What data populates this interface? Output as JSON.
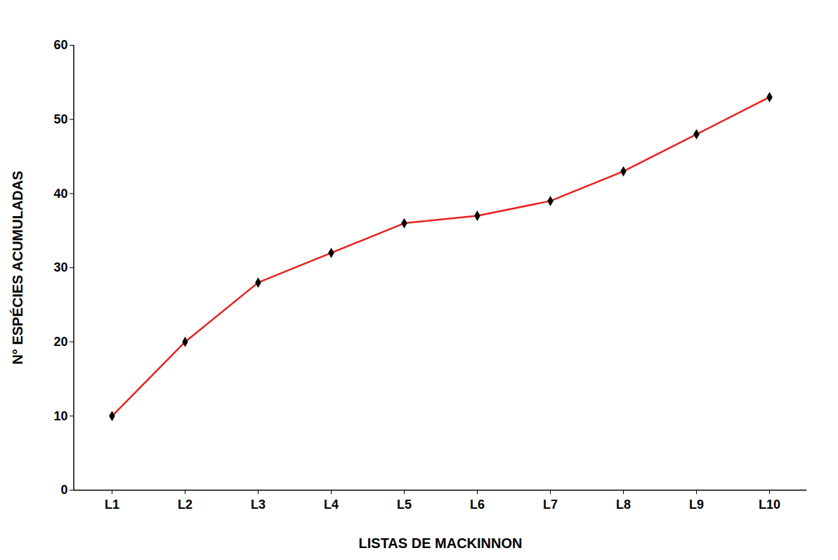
{
  "chart_data": {
    "type": "line",
    "x_label": "LISTAS DE MACKINNON",
    "y_label": "N° ESPÉCIES ACUMULADAS",
    "categories": [
      "L1",
      "L2",
      "L3",
      "L4",
      "L5",
      "L6",
      "L7",
      "L8",
      "L9",
      "L10"
    ],
    "values": [
      10,
      20,
      28,
      32,
      36,
      37,
      39,
      43,
      48,
      53
    ],
    "color": "#e8211d",
    "marker": "diamond",
    "ylim": [
      0,
      60
    ],
    "yticks": [
      0,
      10,
      20,
      30,
      40,
      50,
      60
    ],
    "grid": false
  }
}
